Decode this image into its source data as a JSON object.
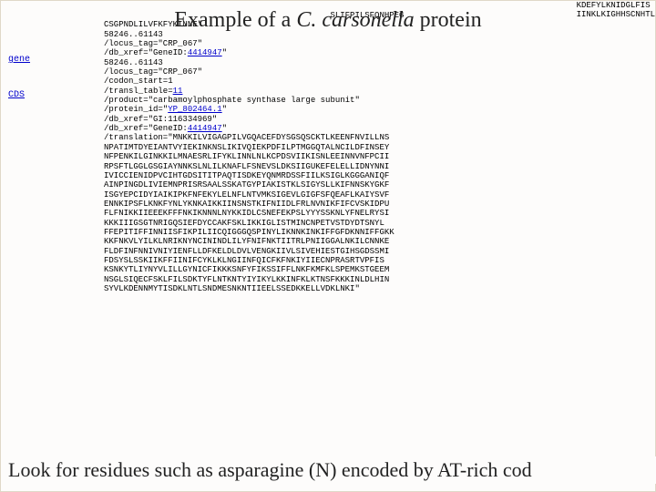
{
  "title": {
    "prefix": "Example of a ",
    "italic": "C. carsonella",
    "suffix": " protein"
  },
  "bg_fragment": "KDEFYLKNIDGLFIS\nIINKLKIGHHSCNHTL\n",
  "left_links": {
    "gene": "gene",
    "cds": "CDS"
  },
  "seq": {
    "line00": "                                              SLIFPILSFQNHPEG",
    "line01": "CSGPNDLILVFKFYKINNE\"",
    "line02": "58246..61143",
    "line03": "/locus_tag=\"CRP_067\"",
    "line04_a": "/db_xref=\"GeneID:",
    "line04_link": "4414947",
    "line04_b": "\"",
    "line05": "58246..61143",
    "line06": "/locus_tag=\"CRP_067\"",
    "line07": "/codon_start=1",
    "line08_a": "/transl_table=",
    "line08_link": "11",
    "line09": "/product=\"carbamoylphosphate synthase large subunit\"",
    "line10_a": "/protein_id=\"",
    "line10_link": "YP_802464.1",
    "line10_b": "\"",
    "line11": "/db_xref=\"GI:116334969\"",
    "line12_a": "/db_xref=\"GeneID:",
    "line12_link": "4414947",
    "line12_b": "\"",
    "line13": "/translation=\"MNKKILVIGAGPILVGQACEFDYSGSQSCKTLKEENFNVILLNS",
    "line14": "NPATIMTDYEIANTVYIEKINKNSLIKIVQIEKPDFILPTMGGQTALNCILDFINSEY",
    "line15": "NFPENKILGINKKILMNAESRLIFYKLINNLNLKCPDSVIIKISNLEEINNVNFPCII",
    "line16": "RPSFTLGGLGSGIAYNNKSLNLILKNAFLFSNEVSLDKSIIGUKEFELELLIDNYNNI",
    "line17": "IVICCIENIDPVCIHTGDSITITPAQTISDKEYQNMRDSSFIILKSIGLKGGGANIQF",
    "line18": "AINPINGDLIVIEMNPRISRSAALSSKATGYPIAKISTKLSIGYSLLKIFNNSKYGKF",
    "line19": "ISGYEPCIDYIAIKIPKFNFEKYLELNFLNTVMKSIGEVLGIGFSFQEAFLKAIYSVF",
    "line20": "ENNKIPSFLKNKFYNLYKNKAIKKIINSNSTKIFNIIDLFRLNVNIKFIFCVSKIDPU",
    "line21": "FLFNIKKIIEEEKFFFNKIKNNNLNYKKIDLCSNEFEKPSLYYYSSKNLYFNELRYSI",
    "line22": "KKKIIIGSGTNRIGQSIEFDYCCAKFSKLIKKIGLISTMINCNPETVSTDYDTSNYL",
    "line23": "FFEPITIFFINNIISFIKPILIICQIGGGQSPINYLIKNNKINKIFFGFDKNNIFFGKK",
    "line24": "KKFNKVLYILKLNRIKNYNCININDLILYFNIFNKTIITRLPNIIGGALNKILCNNKE",
    "line25": "FLDFINFNNIVNIYIENFLLDFKELDLDVLVENGKIIVLSIVEHIESTGIHSGDSSMI",
    "line26": "FDSYSLSSKIIKFFIINIFCYKLKLNGIINFQICFKFNKIYIIECNPRASRTVPFIS",
    "line27": "KSNKYTLIYNYVLILLGYNICFIKKKSNFYFIKSSIFFLNKFKMFKLSPEMKSTGEEM",
    "line28": "NSGLSIQECFSKLFILSDKTYFLNTKNTYIYIKYLKKINFKLKTNSFKKKINLDLHIN",
    "line29": "SYVLKDENNMYTISDKLNTLSNDMESNKNTIIEELSSEDKKELLVDKLNKI\""
  },
  "footer": "Look for residues such as asparagine (N) encoded by AT-rich cod"
}
